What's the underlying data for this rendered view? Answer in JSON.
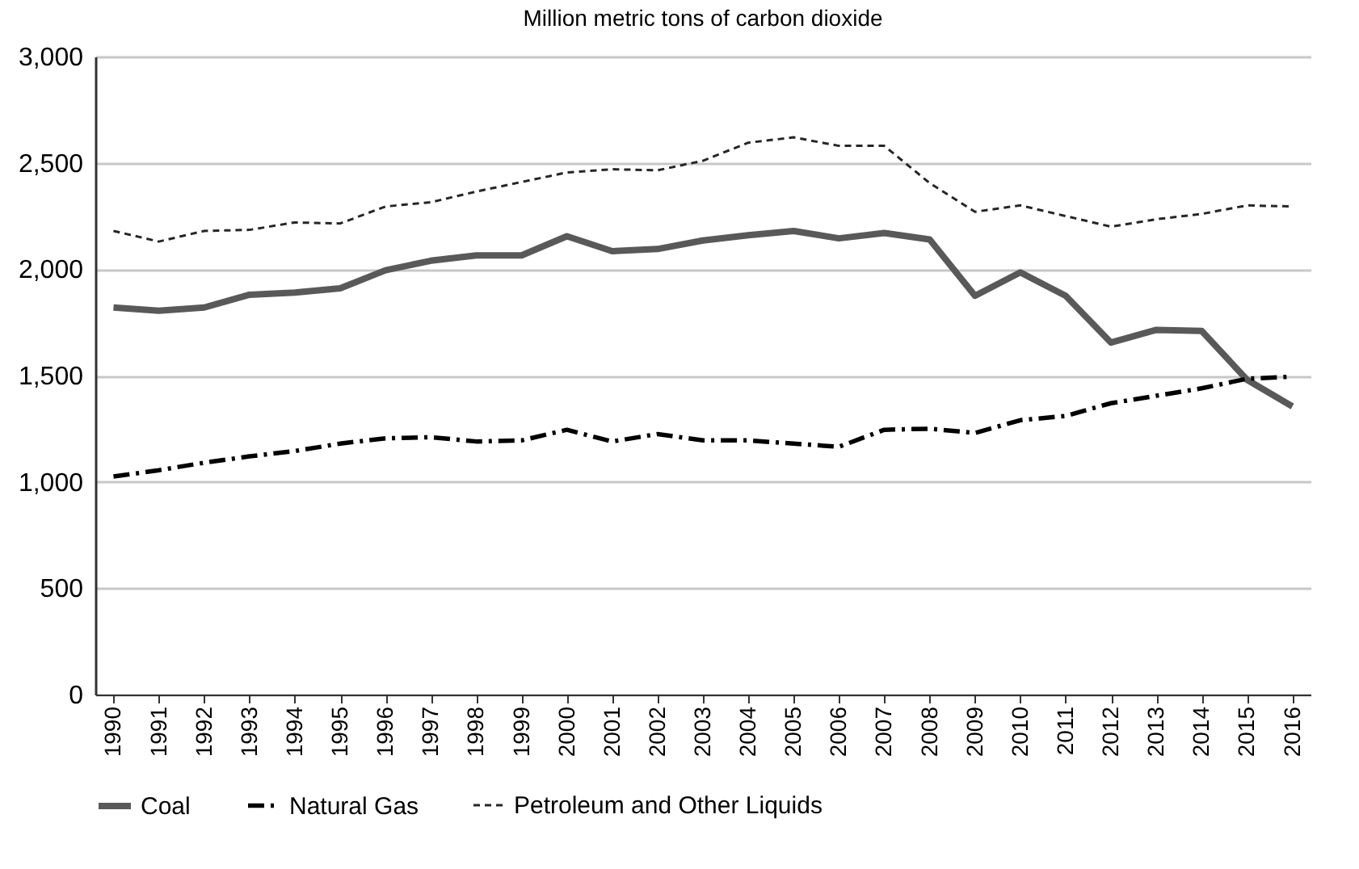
{
  "chart_data": {
    "type": "line",
    "title": "Million metric tons of carbon dioxide",
    "categories": [
      "1990",
      "1991",
      "1992",
      "1993",
      "1994",
      "1995",
      "1996",
      "1997",
      "1998",
      "1999",
      "2000",
      "2001",
      "2002",
      "2003",
      "2004",
      "2005",
      "2006",
      "2007",
      "2008",
      "2009",
      "2010",
      "2011",
      "2012",
      "2013",
      "2014",
      "2015",
      "2016"
    ],
    "series": [
      {
        "name": "Coal",
        "color": "#595959",
        "line_style": "solid",
        "values": [
          1820,
          1805,
          1820,
          1880,
          1890,
          1910,
          1995,
          2040,
          2065,
          2065,
          2155,
          2085,
          2095,
          2135,
          2160,
          2180,
          2145,
          2170,
          2140,
          1875,
          1985,
          1875,
          1655,
          1715,
          1710,
          1480,
          1355
        ]
      },
      {
        "name": "Natural Gas",
        "color": "#000000",
        "line_style": "dashdot",
        "values": [
          1025,
          1055,
          1090,
          1120,
          1145,
          1180,
          1205,
          1210,
          1190,
          1195,
          1245,
          1190,
          1225,
          1195,
          1195,
          1180,
          1165,
          1245,
          1250,
          1230,
          1290,
          1310,
          1370,
          1405,
          1440,
          1485,
          1495
        ]
      },
      {
        "name": "Petroleum and Other Liquids",
        "color": "#262626",
        "line_style": "dashed",
        "values": [
          2180,
          2130,
          2180,
          2185,
          2220,
          2215,
          2295,
          2315,
          2365,
          2410,
          2455,
          2470,
          2465,
          2510,
          2595,
          2620,
          2580,
          2580,
          2405,
          2270,
          2300,
          2250,
          2200,
          2235,
          2260,
          2300,
          2295
        ]
      }
    ],
    "ylim": [
      0,
      3000
    ],
    "yticks": [
      0,
      500,
      {
        "value": 1000,
        "label": "1,000"
      },
      {
        "value": 1500,
        "label": "1,500"
      },
      {
        "value": 2000,
        "label": "2,000"
      },
      {
        "value": 2500,
        "label": "2,500"
      },
      {
        "value": 3000,
        "label": "3,000"
      }
    ],
    "grid": "y",
    "legend": "bottom"
  }
}
